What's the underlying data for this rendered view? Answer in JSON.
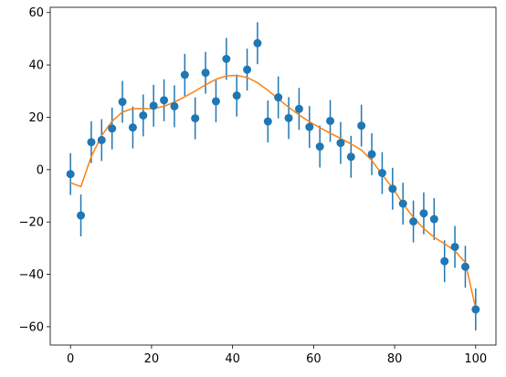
{
  "chart_data": {
    "type": "scatter",
    "title": "",
    "xlabel": "",
    "ylabel": "",
    "xlim": [
      -5,
      105
    ],
    "ylim": [
      -67,
      62
    ],
    "x_ticks": [
      0,
      20,
      40,
      60,
      80,
      100
    ],
    "y_ticks": [
      -60,
      -40,
      -20,
      0,
      20,
      40,
      60
    ],
    "grid": false,
    "legend": "none",
    "colors": {
      "points": "#1f77b4",
      "fit": "#ff7f0e"
    },
    "series": [
      {
        "kind": "errorbar",
        "x": [
          0.0,
          2.56,
          5.13,
          7.69,
          10.26,
          12.82,
          15.38,
          17.95,
          20.51,
          23.08,
          25.64,
          28.21,
          30.77,
          33.33,
          35.9,
          38.46,
          41.03,
          43.59,
          46.15,
          48.72,
          51.28,
          53.85,
          56.41,
          58.97,
          61.54,
          64.1,
          66.67,
          69.23,
          71.79,
          74.36,
          76.92,
          79.49,
          82.05,
          84.62,
          87.18,
          89.74,
          92.31,
          94.87,
          97.44,
          100.0
        ],
        "y": [
          -1.7,
          -17.5,
          10.5,
          11.3,
          15.7,
          25.9,
          16.1,
          20.7,
          24.4,
          26.5,
          24.2,
          36.2,
          19.6,
          37.0,
          26.1,
          42.3,
          28.3,
          38.2,
          48.3,
          18.4,
          27.6,
          19.7,
          23.2,
          16.3,
          8.8,
          18.6,
          10.2,
          4.9,
          16.8,
          5.9,
          -1.3,
          -7.3,
          -13.0,
          -19.8,
          -16.7,
          -18.9,
          -35.0,
          -29.5,
          -37.1,
          -53.4
        ],
        "yerr": 8
      },
      {
        "kind": "line",
        "x": [
          0.0,
          2.56,
          5.13,
          7.69,
          10.26,
          12.82,
          15.38,
          17.95,
          20.51,
          23.08,
          25.64,
          28.21,
          30.77,
          33.33,
          35.9,
          38.46,
          41.03,
          43.59,
          46.15,
          48.72,
          51.28,
          53.85,
          56.41,
          58.97,
          61.54,
          64.1,
          66.67,
          69.23,
          71.79,
          74.36,
          76.92,
          79.49,
          82.05,
          84.62,
          87.18,
          89.74,
          92.31,
          94.87,
          97.44,
          100.0
        ],
        "y": [
          -5.0,
          -6.5,
          5.0,
          13.0,
          18.5,
          22.0,
          23.3,
          23.3,
          23.3,
          24.2,
          25.8,
          27.8,
          30.0,
          32.4,
          34.5,
          35.8,
          36.0,
          35.2,
          33.2,
          30.3,
          27.0,
          23.8,
          20.9,
          18.3,
          16.0,
          13.9,
          11.9,
          9.8,
          7.5,
          3.5,
          -1.9,
          -7.0,
          -13.0,
          -18.3,
          -22.5,
          -25.8,
          -28.3,
          -31.0,
          -35.5,
          -53.0
        ]
      }
    ]
  }
}
